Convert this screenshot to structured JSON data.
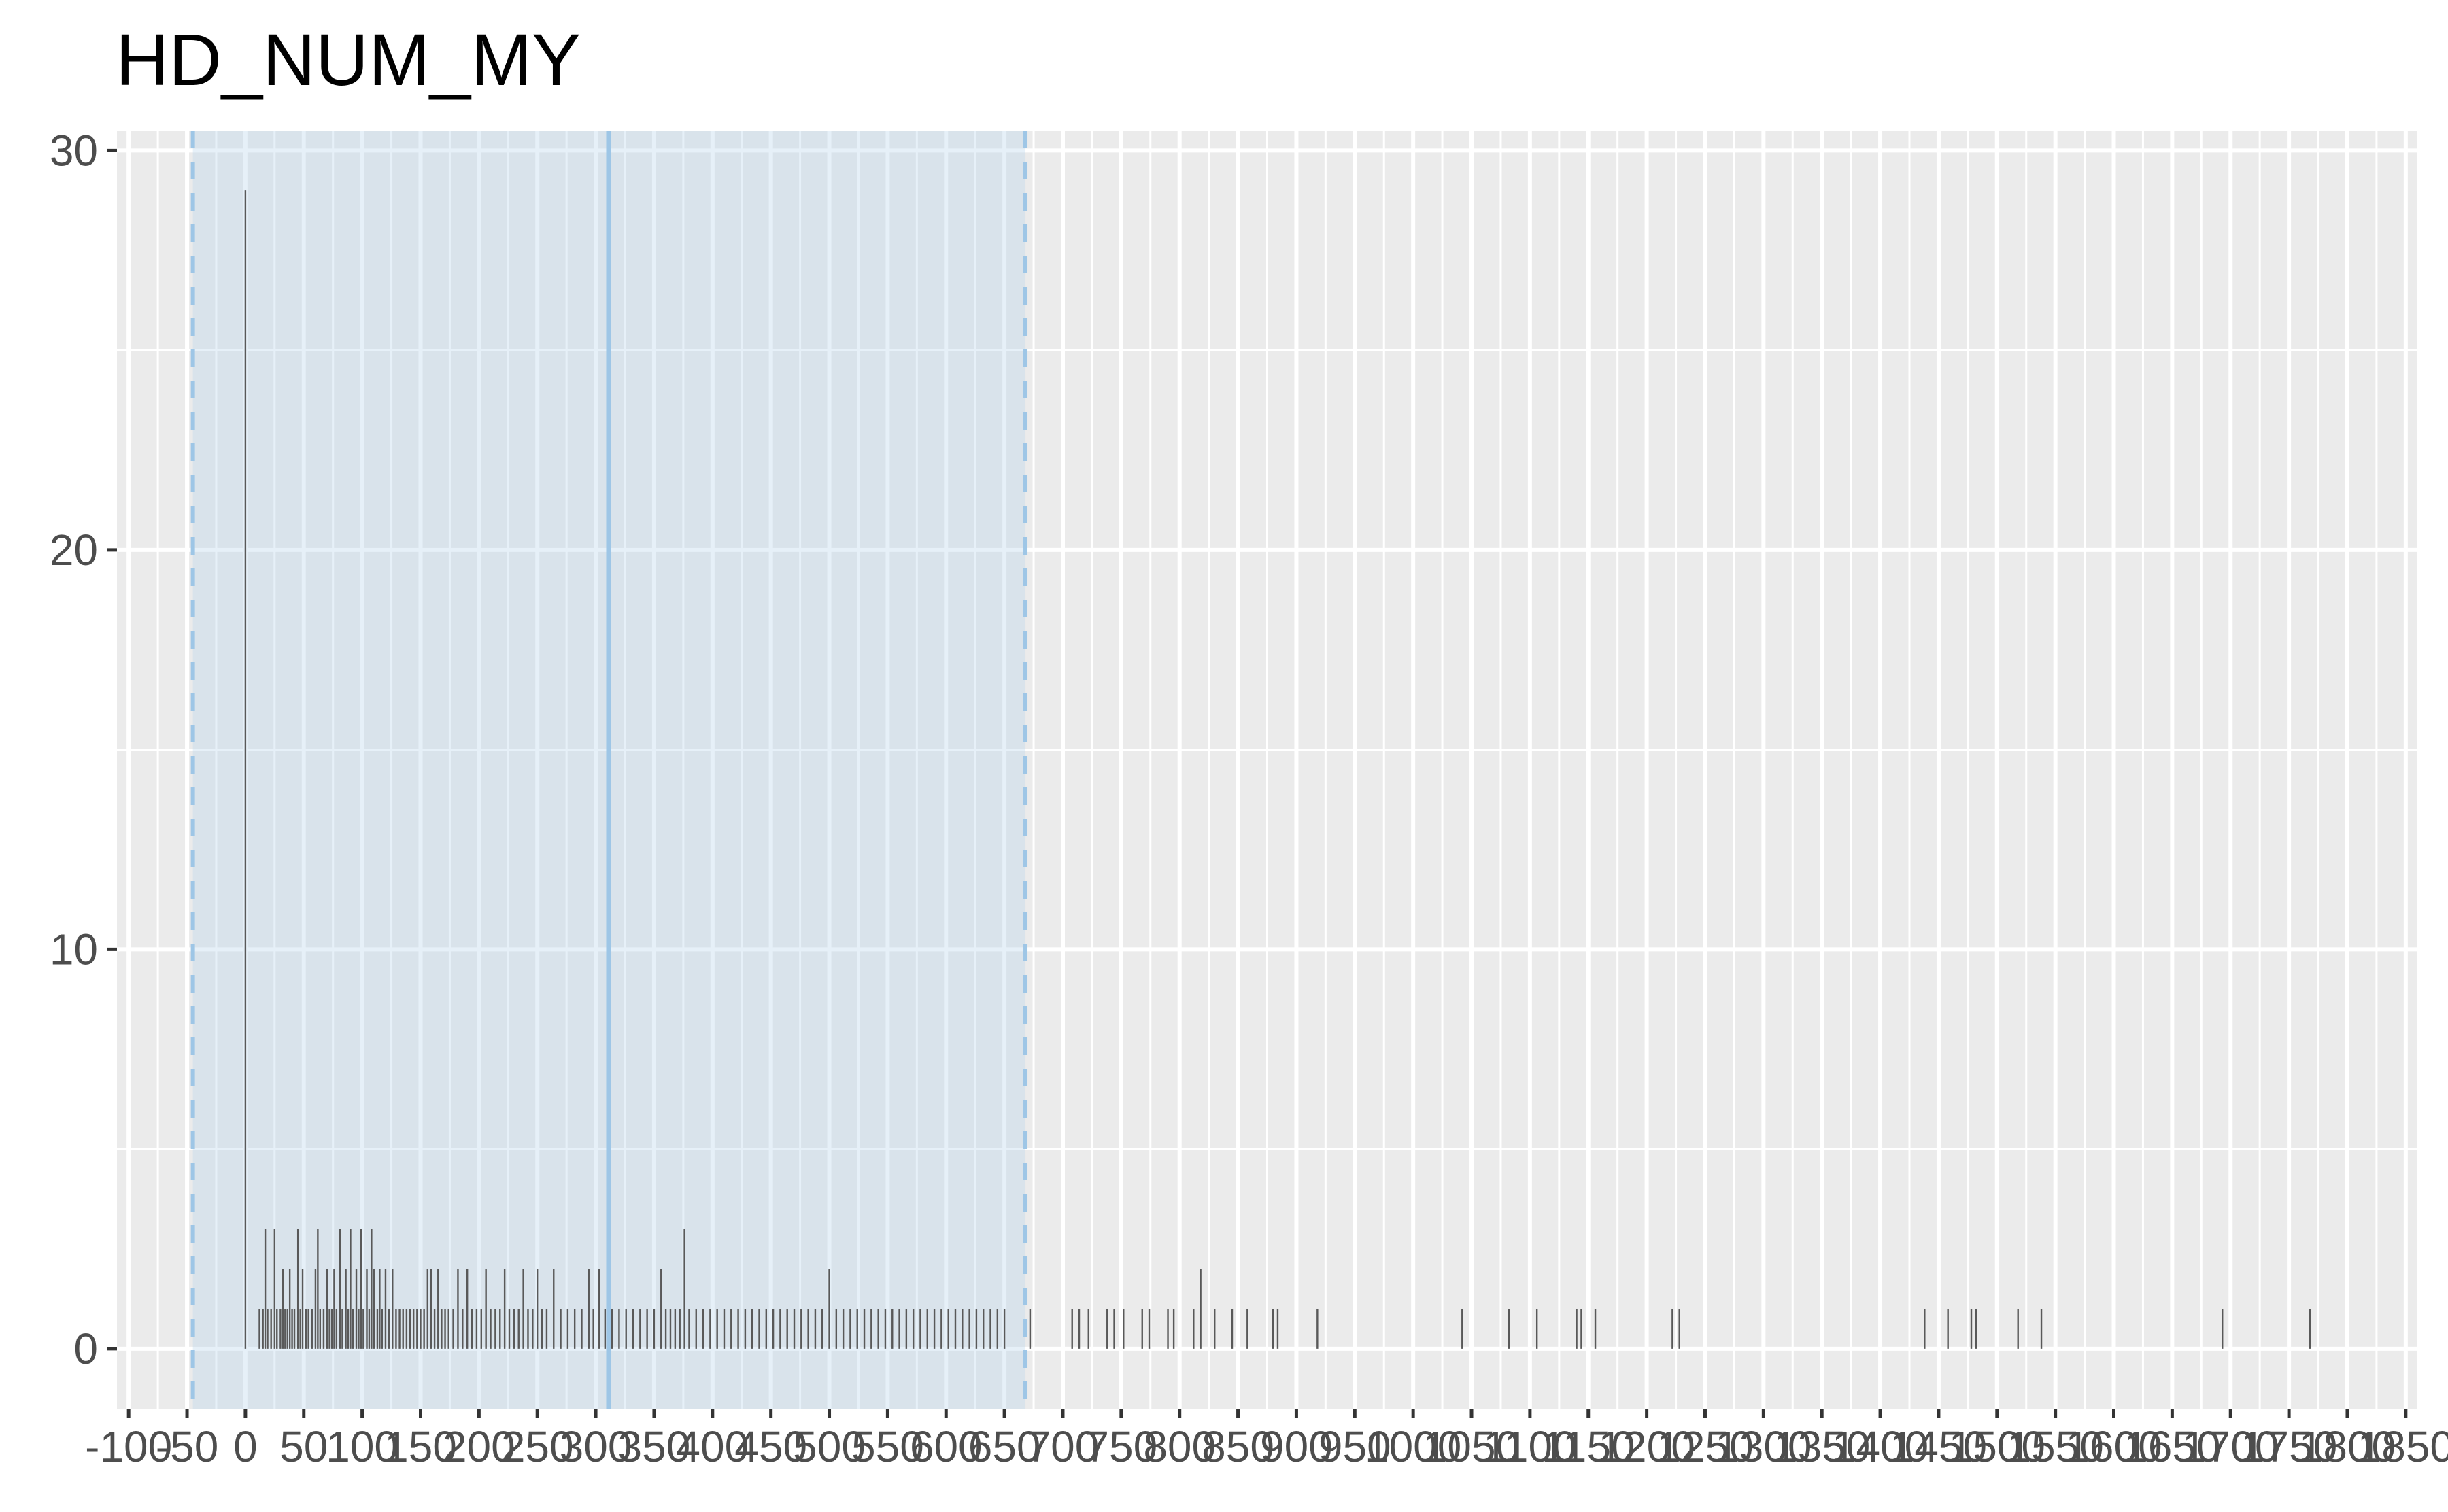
{
  "chart_data": {
    "type": "bar",
    "title": "HD_NUM_MY",
    "xlabel": "",
    "ylabel": "",
    "xlim": [
      -110,
      1860
    ],
    "ylim": [
      -1.5,
      30.5
    ],
    "x_ticks": [
      -100,
      -50,
      0,
      50,
      100,
      150,
      200,
      250,
      300,
      350,
      400,
      450,
      500,
      550,
      600,
      650,
      700,
      750,
      800,
      850,
      900,
      950,
      1000,
      1050,
      1100,
      1150,
      1200,
      1250,
      1300,
      1350,
      1400,
      1450,
      1500,
      1550,
      1600,
      1650,
      1700,
      1750,
      1800,
      1850
    ],
    "x_tick_labels": [
      "-100",
      "-50",
      "0",
      "50",
      "100",
      "150",
      "200",
      "250",
      "300",
      "350",
      "400",
      "450",
      "500",
      "550",
      "600",
      "650",
      "700",
      "750",
      "800",
      "850",
      "900",
      "950",
      "1000",
      "1050",
      "1100",
      "1150",
      "1200",
      "1250",
      "1300",
      "1350",
      "1400",
      "1450",
      "1500",
      "1550",
      "1600",
      "1650",
      "1700",
      "1750",
      "1800",
      "1850"
    ],
    "y_ticks": [
      0,
      10,
      20,
      30
    ],
    "y_tick_labels": [
      "0",
      "10",
      "20",
      "30"
    ],
    "grid": true,
    "band": {
      "from": -45,
      "to": 668,
      "mean": 311,
      "color": "#b7d3ec",
      "line_color": "#9ec6e6"
    },
    "bars": [
      {
        "x": 0,
        "count": 29
      },
      {
        "x": 12,
        "count": 1
      },
      {
        "x": 15,
        "count": 1
      },
      {
        "x": 17,
        "count": 3
      },
      {
        "x": 19,
        "count": 1
      },
      {
        "x": 22,
        "count": 1
      },
      {
        "x": 25,
        "count": 3
      },
      {
        "x": 27,
        "count": 1
      },
      {
        "x": 30,
        "count": 1
      },
      {
        "x": 32,
        "count": 2
      },
      {
        "x": 34,
        "count": 1
      },
      {
        "x": 36,
        "count": 1
      },
      {
        "x": 38,
        "count": 2
      },
      {
        "x": 40,
        "count": 1
      },
      {
        "x": 42,
        "count": 1
      },
      {
        "x": 45,
        "count": 3
      },
      {
        "x": 47,
        "count": 1
      },
      {
        "x": 49,
        "count": 2
      },
      {
        "x": 52,
        "count": 1
      },
      {
        "x": 54,
        "count": 1
      },
      {
        "x": 57,
        "count": 1
      },
      {
        "x": 60,
        "count": 2
      },
      {
        "x": 62,
        "count": 3
      },
      {
        "x": 64,
        "count": 1
      },
      {
        "x": 67,
        "count": 1
      },
      {
        "x": 70,
        "count": 2
      },
      {
        "x": 72,
        "count": 1
      },
      {
        "x": 74,
        "count": 1
      },
      {
        "x": 76,
        "count": 2
      },
      {
        "x": 78,
        "count": 1
      },
      {
        "x": 81,
        "count": 3
      },
      {
        "x": 83,
        "count": 1
      },
      {
        "x": 86,
        "count": 2
      },
      {
        "x": 88,
        "count": 1
      },
      {
        "x": 90,
        "count": 3
      },
      {
        "x": 92,
        "count": 1
      },
      {
        "x": 95,
        "count": 2
      },
      {
        "x": 97,
        "count": 1
      },
      {
        "x": 99,
        "count": 3
      },
      {
        "x": 101,
        "count": 1
      },
      {
        "x": 104,
        "count": 2
      },
      {
        "x": 106,
        "count": 1
      },
      {
        "x": 108,
        "count": 3
      },
      {
        "x": 110,
        "count": 2
      },
      {
        "x": 113,
        "count": 1
      },
      {
        "x": 115,
        "count": 2
      },
      {
        "x": 117,
        "count": 1
      },
      {
        "x": 120,
        "count": 2
      },
      {
        "x": 123,
        "count": 1
      },
      {
        "x": 126,
        "count": 2
      },
      {
        "x": 129,
        "count": 1
      },
      {
        "x": 132,
        "count": 1
      },
      {
        "x": 135,
        "count": 1
      },
      {
        "x": 138,
        "count": 1
      },
      {
        "x": 141,
        "count": 1
      },
      {
        "x": 144,
        "count": 1
      },
      {
        "x": 147,
        "count": 1
      },
      {
        "x": 150,
        "count": 1
      },
      {
        "x": 153,
        "count": 1
      },
      {
        "x": 156,
        "count": 2
      },
      {
        "x": 159,
        "count": 2
      },
      {
        "x": 162,
        "count": 1
      },
      {
        "x": 165,
        "count": 2
      },
      {
        "x": 168,
        "count": 1
      },
      {
        "x": 171,
        "count": 1
      },
      {
        "x": 174,
        "count": 1
      },
      {
        "x": 178,
        "count": 1
      },
      {
        "x": 182,
        "count": 2
      },
      {
        "x": 186,
        "count": 1
      },
      {
        "x": 190,
        "count": 2
      },
      {
        "x": 194,
        "count": 1
      },
      {
        "x": 198,
        "count": 1
      },
      {
        "x": 202,
        "count": 1
      },
      {
        "x": 206,
        "count": 2
      },
      {
        "x": 210,
        "count": 1
      },
      {
        "x": 214,
        "count": 1
      },
      {
        "x": 218,
        "count": 1
      },
      {
        "x": 222,
        "count": 2
      },
      {
        "x": 226,
        "count": 1
      },
      {
        "x": 230,
        "count": 1
      },
      {
        "x": 234,
        "count": 1
      },
      {
        "x": 238,
        "count": 2
      },
      {
        "x": 242,
        "count": 1
      },
      {
        "x": 246,
        "count": 1
      },
      {
        "x": 250,
        "count": 2
      },
      {
        "x": 254,
        "count": 1
      },
      {
        "x": 258,
        "count": 1
      },
      {
        "x": 264,
        "count": 2
      },
      {
        "x": 270,
        "count": 1
      },
      {
        "x": 276,
        "count": 1
      },
      {
        "x": 282,
        "count": 1
      },
      {
        "x": 288,
        "count": 1
      },
      {
        "x": 294,
        "count": 2
      },
      {
        "x": 298,
        "count": 1
      },
      {
        "x": 303,
        "count": 2
      },
      {
        "x": 308,
        "count": 1
      },
      {
        "x": 314,
        "count": 1
      },
      {
        "x": 320,
        "count": 1
      },
      {
        "x": 326,
        "count": 1
      },
      {
        "x": 332,
        "count": 1
      },
      {
        "x": 338,
        "count": 1
      },
      {
        "x": 344,
        "count": 1
      },
      {
        "x": 350,
        "count": 1
      },
      {
        "x": 356,
        "count": 2
      },
      {
        "x": 360,
        "count": 1
      },
      {
        "x": 364,
        "count": 1
      },
      {
        "x": 368,
        "count": 1
      },
      {
        "x": 372,
        "count": 1
      },
      {
        "x": 376,
        "count": 3
      },
      {
        "x": 380,
        "count": 1
      },
      {
        "x": 386,
        "count": 1
      },
      {
        "x": 392,
        "count": 1
      },
      {
        "x": 398,
        "count": 1
      },
      {
        "x": 404,
        "count": 1
      },
      {
        "x": 410,
        "count": 1
      },
      {
        "x": 416,
        "count": 1
      },
      {
        "x": 422,
        "count": 1
      },
      {
        "x": 428,
        "count": 1
      },
      {
        "x": 434,
        "count": 1
      },
      {
        "x": 440,
        "count": 1
      },
      {
        "x": 446,
        "count": 1
      },
      {
        "x": 452,
        "count": 1
      },
      {
        "x": 458,
        "count": 1
      },
      {
        "x": 464,
        "count": 1
      },
      {
        "x": 470,
        "count": 1
      },
      {
        "x": 476,
        "count": 1
      },
      {
        "x": 482,
        "count": 1
      },
      {
        "x": 488,
        "count": 1
      },
      {
        "x": 494,
        "count": 1
      },
      {
        "x": 500,
        "count": 2
      },
      {
        "x": 506,
        "count": 1
      },
      {
        "x": 512,
        "count": 1
      },
      {
        "x": 518,
        "count": 1
      },
      {
        "x": 524,
        "count": 1
      },
      {
        "x": 530,
        "count": 1
      },
      {
        "x": 536,
        "count": 1
      },
      {
        "x": 542,
        "count": 1
      },
      {
        "x": 548,
        "count": 1
      },
      {
        "x": 554,
        "count": 1
      },
      {
        "x": 560,
        "count": 1
      },
      {
        "x": 566,
        "count": 1
      },
      {
        "x": 572,
        "count": 1
      },
      {
        "x": 578,
        "count": 1
      },
      {
        "x": 584,
        "count": 1
      },
      {
        "x": 590,
        "count": 1
      },
      {
        "x": 596,
        "count": 1
      },
      {
        "x": 602,
        "count": 1
      },
      {
        "x": 608,
        "count": 1
      },
      {
        "x": 614,
        "count": 1
      },
      {
        "x": 620,
        "count": 1
      },
      {
        "x": 626,
        "count": 1
      },
      {
        "x": 632,
        "count": 1
      },
      {
        "x": 638,
        "count": 1
      },
      {
        "x": 644,
        "count": 1
      },
      {
        "x": 650,
        "count": 1
      },
      {
        "x": 672,
        "count": 1
      },
      {
        "x": 708,
        "count": 1
      },
      {
        "x": 714,
        "count": 1
      },
      {
        "x": 722,
        "count": 1
      },
      {
        "x": 738,
        "count": 1
      },
      {
        "x": 744,
        "count": 1
      },
      {
        "x": 752,
        "count": 1
      },
      {
        "x": 768,
        "count": 1
      },
      {
        "x": 774,
        "count": 1
      },
      {
        "x": 790,
        "count": 1
      },
      {
        "x": 795,
        "count": 1
      },
      {
        "x": 812,
        "count": 1
      },
      {
        "x": 818,
        "count": 2
      },
      {
        "x": 830,
        "count": 1
      },
      {
        "x": 845,
        "count": 1
      },
      {
        "x": 858,
        "count": 1
      },
      {
        "x": 880,
        "count": 1
      },
      {
        "x": 884,
        "count": 1
      },
      {
        "x": 918,
        "count": 1
      },
      {
        "x": 1042,
        "count": 1
      },
      {
        "x": 1082,
        "count": 1
      },
      {
        "x": 1106,
        "count": 1
      },
      {
        "x": 1140,
        "count": 1
      },
      {
        "x": 1144,
        "count": 1
      },
      {
        "x": 1156,
        "count": 1
      },
      {
        "x": 1222,
        "count": 1
      },
      {
        "x": 1228,
        "count": 1
      },
      {
        "x": 1438,
        "count": 1
      },
      {
        "x": 1458,
        "count": 1
      },
      {
        "x": 1478,
        "count": 1
      },
      {
        "x": 1482,
        "count": 1
      },
      {
        "x": 1518,
        "count": 1
      },
      {
        "x": 1538,
        "count": 1
      },
      {
        "x": 1693,
        "count": 1
      },
      {
        "x": 1768,
        "count": 1
      }
    ],
    "bar_color": "#595959",
    "panel_color": "#ebebeb",
    "grid_color": "#ffffff"
  }
}
